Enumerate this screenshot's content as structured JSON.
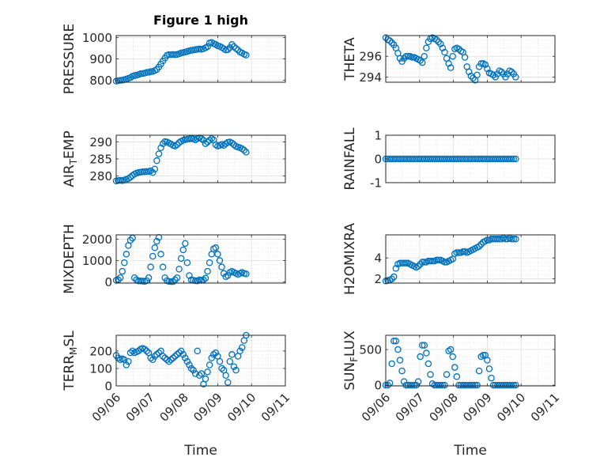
{
  "figure": {
    "title": "Figure 1 high",
    "xlabel": "Time",
    "marker_color": "#0072BD"
  },
  "chart_data": [
    {
      "type": "scatter",
      "title": "Figure 1 high",
      "ylabel": "PRESSURE",
      "xlim": [
        0,
        5
      ],
      "xticklabels": [],
      "ylim": [
        790,
        1010
      ],
      "yticks": [
        800,
        900,
        1000
      ],
      "yticklabels": [
        "800",
        "900",
        "1000"
      ],
      "grid": true,
      "marker": "circle",
      "x": [
        0.0,
        0.06,
        0.12,
        0.18,
        0.24,
        0.3,
        0.36,
        0.42,
        0.48,
        0.54,
        0.6,
        0.66,
        0.72,
        0.78,
        0.84,
        0.9,
        0.96,
        1.02,
        1.08,
        1.14,
        1.2,
        1.26,
        1.32,
        1.38,
        1.44,
        1.5,
        1.56,
        1.62,
        1.68,
        1.74,
        1.8,
        1.86,
        1.92,
        1.98,
        2.04,
        2.1,
        2.16,
        2.22,
        2.28,
        2.34,
        2.4,
        2.46,
        2.52,
        2.58,
        2.64,
        2.7,
        2.76,
        2.82,
        2.88,
        2.94,
        3.0,
        3.06,
        3.12,
        3.18,
        3.24,
        3.3,
        3.36,
        3.42,
        3.48,
        3.54,
        3.6,
        3.66,
        3.72,
        3.78,
        3.84
      ],
      "y": [
        795,
        797,
        799,
        800,
        802,
        805,
        808,
        812,
        818,
        821,
        823,
        826,
        830,
        831,
        833,
        836,
        837,
        840,
        841,
        845,
        850,
        862,
        876,
        890,
        904,
        917,
        920,
        920,
        921,
        920,
        921,
        924,
        928,
        930,
        932,
        935,
        938,
        940,
        942,
        944,
        945,
        947,
        945,
        948,
        952,
        958,
        975,
        978,
        972,
        968,
        962,
        959,
        954,
        948,
        942,
        944,
        953,
        968,
        958,
        949,
        942,
        932,
        928,
        922,
        918
      ]
    },
    {
      "type": "scatter",
      "ylabel": "THETA",
      "xlim": [
        0,
        5
      ],
      "xticklabels": [],
      "ylim": [
        293.5,
        298
      ],
      "yticks": [
        294,
        296
      ],
      "yticklabels": [
        "294",
        "296"
      ],
      "grid": true,
      "marker": "circle",
      "x": [
        0.0,
        0.06,
        0.12,
        0.18,
        0.24,
        0.3,
        0.36,
        0.42,
        0.48,
        0.54,
        0.6,
        0.66,
        0.72,
        0.78,
        0.84,
        0.9,
        0.96,
        1.02,
        1.08,
        1.14,
        1.2,
        1.26,
        1.32,
        1.38,
        1.44,
        1.5,
        1.56,
        1.62,
        1.68,
        1.74,
        1.8,
        1.86,
        1.92,
        1.98,
        2.04,
        2.1,
        2.16,
        2.22,
        2.28,
        2.34,
        2.4,
        2.46,
        2.52,
        2.58,
        2.64,
        2.7,
        2.76,
        2.82,
        2.88,
        2.94,
        3.0,
        3.06,
        3.12,
        3.18,
        3.24,
        3.3,
        3.36,
        3.42,
        3.48,
        3.54,
        3.6,
        3.66,
        3.72,
        3.78,
        3.84
      ],
      "y": [
        297.8,
        297.6,
        297.5,
        297.3,
        297.1,
        296.8,
        296.3,
        295.8,
        295.5,
        295.8,
        296.0,
        296.0,
        296.0,
        295.9,
        295.9,
        295.8,
        295.7,
        295.6,
        295.4,
        296.0,
        296.8,
        297.4,
        297.7,
        297.8,
        297.7,
        297.6,
        297.4,
        297.2,
        296.8,
        296.4,
        295.8,
        295.3,
        294.9,
        296.0,
        296.7,
        296.8,
        296.7,
        296.5,
        296.4,
        295.9,
        295.0,
        294.5,
        294.1,
        293.9,
        293.7,
        294.2,
        295.0,
        295.3,
        295.3,
        295.2,
        294.8,
        294.4,
        294.3,
        294.2,
        294.0,
        294.3,
        294.6,
        294.5,
        294.3,
        294.0,
        294.3,
        294.6,
        294.5,
        294.3,
        294.0
      ]
    },
    {
      "type": "scatter",
      "ylabel": "AIR_TEMP",
      "ylabel_main": "AIR",
      "ylabel_sub": "T",
      "ylabel_rest": "EMP",
      "xlim": [
        0,
        5
      ],
      "xticklabels": [],
      "ylim": [
        278,
        292
      ],
      "yticks": [
        280,
        285,
        290
      ],
      "yticklabels": [
        "280",
        "285",
        "290"
      ],
      "grid": true,
      "marker": "circle",
      "x": [
        0.0,
        0.06,
        0.12,
        0.18,
        0.24,
        0.3,
        0.36,
        0.42,
        0.48,
        0.54,
        0.6,
        0.66,
        0.72,
        0.78,
        0.84,
        0.9,
        0.96,
        1.02,
        1.08,
        1.14,
        1.2,
        1.26,
        1.32,
        1.38,
        1.44,
        1.5,
        1.56,
        1.62,
        1.68,
        1.74,
        1.8,
        1.86,
        1.92,
        1.98,
        2.04,
        2.1,
        2.16,
        2.22,
        2.28,
        2.34,
        2.4,
        2.46,
        2.52,
        2.58,
        2.64,
        2.7,
        2.76,
        2.82,
        2.88,
        2.94,
        3.0,
        3.06,
        3.12,
        3.18,
        3.24,
        3.3,
        3.36,
        3.42,
        3.48,
        3.54,
        3.6,
        3.66,
        3.72,
        3.78,
        3.84
      ],
      "y": [
        278.5,
        278.6,
        278.7,
        278.6,
        278.8,
        279.0,
        279.2,
        279.6,
        280.1,
        280.5,
        280.8,
        281.0,
        281.1,
        281.2,
        281.2,
        281.3,
        281.3,
        281.5,
        281.0,
        282.0,
        284.5,
        286.5,
        288.3,
        289.5,
        290.1,
        290.0,
        289.7,
        289.4,
        289.0,
        288.8,
        289.2,
        289.8,
        290.2,
        290.5,
        290.7,
        290.8,
        290.9,
        291.0,
        290.9,
        290.6,
        291.0,
        291.2,
        291.0,
        290.5,
        289.5,
        290.0,
        290.5,
        291.0,
        290.6,
        289.2,
        288.8,
        289.0,
        289.3,
        289.0,
        289.5,
        289.9,
        290.0,
        289.7,
        289.2,
        288.7,
        288.5,
        288.3,
        288.0,
        287.6,
        287.0
      ]
    },
    {
      "type": "scatter",
      "ylabel": "RAINFALL",
      "xlim": [
        0,
        5
      ],
      "xticklabels": [],
      "ylim": [
        -1,
        1
      ],
      "yticks": [
        -1,
        0,
        1
      ],
      "yticklabels": [
        "-1",
        "0",
        "1"
      ],
      "grid": true,
      "marker": "circle",
      "x": [
        0.0,
        0.06,
        0.12,
        0.18,
        0.24,
        0.3,
        0.36,
        0.42,
        0.48,
        0.54,
        0.6,
        0.66,
        0.72,
        0.78,
        0.84,
        0.9,
        0.96,
        1.02,
        1.08,
        1.14,
        1.2,
        1.26,
        1.32,
        1.38,
        1.44,
        1.5,
        1.56,
        1.62,
        1.68,
        1.74,
        1.8,
        1.86,
        1.92,
        1.98,
        2.04,
        2.1,
        2.16,
        2.22,
        2.28,
        2.34,
        2.4,
        2.46,
        2.52,
        2.58,
        2.64,
        2.7,
        2.76,
        2.82,
        2.88,
        2.94,
        3.0,
        3.06,
        3.12,
        3.18,
        3.24,
        3.3,
        3.36,
        3.42,
        3.48,
        3.54,
        3.6,
        3.66,
        3.72,
        3.78,
        3.84
      ],
      "y": [
        0,
        0,
        0,
        0,
        0,
        0,
        0,
        0,
        0,
        0,
        0,
        0,
        0,
        0,
        0,
        0,
        0,
        0,
        0,
        0,
        0,
        0,
        0,
        0,
        0,
        0,
        0,
        0,
        0,
        0,
        0,
        0,
        0,
        0,
        0,
        0,
        0,
        0,
        0,
        0,
        0,
        0,
        0,
        0,
        0,
        0,
        0,
        0,
        0,
        0,
        0,
        0,
        0,
        0,
        0,
        0,
        0,
        0,
        0,
        0,
        0,
        0,
        0,
        0,
        0
      ]
    },
    {
      "type": "scatter",
      "ylabel": "MIXDEPTH",
      "xlim": [
        0,
        5
      ],
      "xticklabels": [],
      "ylim": [
        -50,
        2200
      ],
      "yticks": [
        0,
        1000,
        2000
      ],
      "yticklabels": [
        "0",
        "1000",
        "2000"
      ],
      "grid": true,
      "marker": "circle",
      "x": [
        0.0,
        0.06,
        0.12,
        0.18,
        0.24,
        0.3,
        0.36,
        0.42,
        0.48,
        0.54,
        0.6,
        0.66,
        0.72,
        0.78,
        0.84,
        0.9,
        0.96,
        1.02,
        1.08,
        1.14,
        1.2,
        1.26,
        1.32,
        1.38,
        1.44,
        1.5,
        1.56,
        1.62,
        1.68,
        1.74,
        1.8,
        1.86,
        1.92,
        1.98,
        2.04,
        2.1,
        2.16,
        2.22,
        2.28,
        2.34,
        2.4,
        2.46,
        2.52,
        2.58,
        2.64,
        2.7,
        2.76,
        2.82,
        2.88,
        2.94,
        3.0,
        3.06,
        3.12,
        3.18,
        3.24,
        3.3,
        3.36,
        3.42,
        3.48,
        3.54,
        3.6,
        3.66,
        3.72,
        3.78,
        3.84
      ],
      "y": [
        80,
        100,
        200,
        500,
        900,
        1300,
        1700,
        1950,
        2050,
        200,
        100,
        50,
        50,
        40,
        30,
        60,
        200,
        700,
        1200,
        1600,
        1900,
        2080,
        1300,
        700,
        200,
        60,
        30,
        20,
        20,
        100,
        200,
        600,
        1100,
        1500,
        1800,
        900,
        300,
        100,
        80,
        60,
        50,
        100,
        80,
        100,
        180,
        500,
        900,
        1300,
        1550,
        1600,
        1300,
        1000,
        700,
        400,
        250,
        300,
        450,
        500,
        450,
        400,
        350,
        400,
        450,
        400,
        380
      ]
    },
    {
      "type": "scatter",
      "ylabel": "H2OMIXRA",
      "xlim": [
        0,
        5
      ],
      "xticklabels": [],
      "ylim": [
        1.6,
        6.2
      ],
      "yticks": [
        2,
        4
      ],
      "yticklabels": [
        "2",
        "4"
      ],
      "grid": true,
      "marker": "circle",
      "x": [
        0.0,
        0.06,
        0.12,
        0.18,
        0.24,
        0.3,
        0.36,
        0.42,
        0.48,
        0.54,
        0.6,
        0.66,
        0.72,
        0.78,
        0.84,
        0.9,
        0.96,
        1.02,
        1.08,
        1.14,
        1.2,
        1.26,
        1.32,
        1.38,
        1.44,
        1.5,
        1.56,
        1.62,
        1.68,
        1.74,
        1.8,
        1.86,
        1.92,
        1.98,
        2.04,
        2.1,
        2.16,
        2.22,
        2.28,
        2.34,
        2.4,
        2.46,
        2.52,
        2.58,
        2.64,
        2.7,
        2.76,
        2.82,
        2.88,
        2.94,
        3.0,
        3.06,
        3.12,
        3.18,
        3.24,
        3.3,
        3.36,
        3.42,
        3.48,
        3.54,
        3.6,
        3.66,
        3.72,
        3.78,
        3.84
      ],
      "y": [
        1.8,
        1.85,
        1.9,
        2.0,
        2.2,
        3.0,
        3.4,
        3.5,
        3.5,
        3.5,
        3.5,
        3.5,
        3.4,
        3.3,
        3.2,
        3.1,
        3.2,
        3.4,
        3.6,
        3.6,
        3.6,
        3.7,
        3.7,
        3.7,
        3.7,
        3.8,
        3.8,
        3.8,
        3.7,
        3.6,
        3.6,
        3.7,
        3.8,
        3.9,
        4.4,
        4.5,
        4.5,
        4.5,
        4.6,
        4.6,
        4.5,
        4.6,
        4.7,
        4.8,
        4.9,
        5.0,
        5.1,
        5.3,
        5.5,
        5.6,
        5.7,
        5.7,
        5.8,
        5.8,
        5.8,
        5.8,
        5.8,
        5.8,
        5.9,
        5.8,
        5.8,
        5.9,
        5.8,
        5.8,
        5.8
      ]
    },
    {
      "type": "scatter",
      "ylabel": "TERR_MSL",
      "ylabel_main": "TERR",
      "ylabel_sub": "M",
      "ylabel_rest": "SL",
      "xlim": [
        0,
        5
      ],
      "xticks": [
        0,
        1,
        2,
        3,
        4,
        5
      ],
      "xticklabels": [
        "09/06",
        "09/07",
        "09/08",
        "09/09",
        "09/10",
        "09/11"
      ],
      "xlabel": "Time",
      "ylim": [
        0,
        290
      ],
      "yticks": [
        0,
        100,
        200
      ],
      "yticklabels": [
        "0",
        "100",
        "200"
      ],
      "grid": true,
      "marker": "circle",
      "x": [
        0.0,
        0.06,
        0.12,
        0.18,
        0.24,
        0.3,
        0.36,
        0.42,
        0.48,
        0.54,
        0.6,
        0.66,
        0.72,
        0.78,
        0.84,
        0.9,
        0.96,
        1.02,
        1.08,
        1.14,
        1.2,
        1.26,
        1.32,
        1.38,
        1.44,
        1.5,
        1.56,
        1.62,
        1.68,
        1.74,
        1.8,
        1.86,
        1.92,
        1.98,
        2.04,
        2.1,
        2.16,
        2.22,
        2.28,
        2.34,
        2.4,
        2.46,
        2.52,
        2.58,
        2.64,
        2.7,
        2.76,
        2.82,
        2.88,
        2.94,
        3.0,
        3.06,
        3.12,
        3.18,
        3.24,
        3.3,
        3.36,
        3.42,
        3.48,
        3.54,
        3.6,
        3.66,
        3.72,
        3.78,
        3.84
      ],
      "y": [
        175,
        160,
        150,
        155,
        150,
        120,
        140,
        190,
        200,
        190,
        195,
        200,
        210,
        215,
        210,
        200,
        190,
        160,
        150,
        170,
        180,
        190,
        200,
        170,
        160,
        150,
        140,
        150,
        160,
        170,
        180,
        190,
        200,
        180,
        160,
        140,
        120,
        100,
        90,
        70,
        200,
        60,
        70,
        10,
        40,
        80,
        120,
        160,
        180,
        190,
        170,
        140,
        100,
        90,
        60,
        20,
        140,
        180,
        110,
        90,
        170,
        200,
        220,
        260,
        290
      ]
    },
    {
      "type": "scatter",
      "ylabel": "SUN_FLUX",
      "ylabel_main": "SUN",
      "ylabel_sub": "F",
      "ylabel_rest": "LUX",
      "xlim": [
        0,
        5
      ],
      "xticks": [
        0,
        1,
        2,
        3,
        4,
        5
      ],
      "xticklabels": [
        "09/06",
        "09/07",
        "09/08",
        "09/09",
        "09/10",
        "09/11"
      ],
      "xlabel": "Time",
      "ylim": [
        -10,
        700
      ],
      "yticks": [
        0,
        500
      ],
      "yticklabels": [
        "0",
        "500"
      ],
      "grid": true,
      "marker": "circle",
      "x": [
        0.0,
        0.06,
        0.12,
        0.18,
        0.24,
        0.3,
        0.36,
        0.42,
        0.48,
        0.54,
        0.6,
        0.66,
        0.72,
        0.78,
        0.84,
        0.9,
        0.96,
        1.02,
        1.08,
        1.14,
        1.2,
        1.26,
        1.32,
        1.38,
        1.44,
        1.5,
        1.56,
        1.62,
        1.68,
        1.74,
        1.8,
        1.86,
        1.92,
        1.98,
        2.04,
        2.1,
        2.16,
        2.22,
        2.28,
        2.34,
        2.4,
        2.46,
        2.52,
        2.58,
        2.64,
        2.7,
        2.76,
        2.82,
        2.88,
        2.94,
        3.0,
        3.06,
        3.12,
        3.18,
        3.24,
        3.3,
        3.36,
        3.42,
        3.48,
        3.54,
        3.6,
        3.66,
        3.72,
        3.78,
        3.84
      ],
      "y": [
        0,
        0,
        30,
        300,
        620,
        620,
        500,
        350,
        200,
        50,
        0,
        0,
        0,
        0,
        0,
        0,
        50,
        400,
        560,
        560,
        450,
        300,
        150,
        20,
        0,
        0,
        0,
        0,
        0,
        0,
        150,
        480,
        500,
        400,
        250,
        120,
        0,
        0,
        0,
        0,
        0,
        0,
        0,
        0,
        0,
        0,
        200,
        400,
        420,
        420,
        350,
        230,
        100,
        0,
        0,
        0,
        0,
        0,
        0,
        0,
        0,
        0,
        0,
        0,
        0
      ]
    }
  ]
}
